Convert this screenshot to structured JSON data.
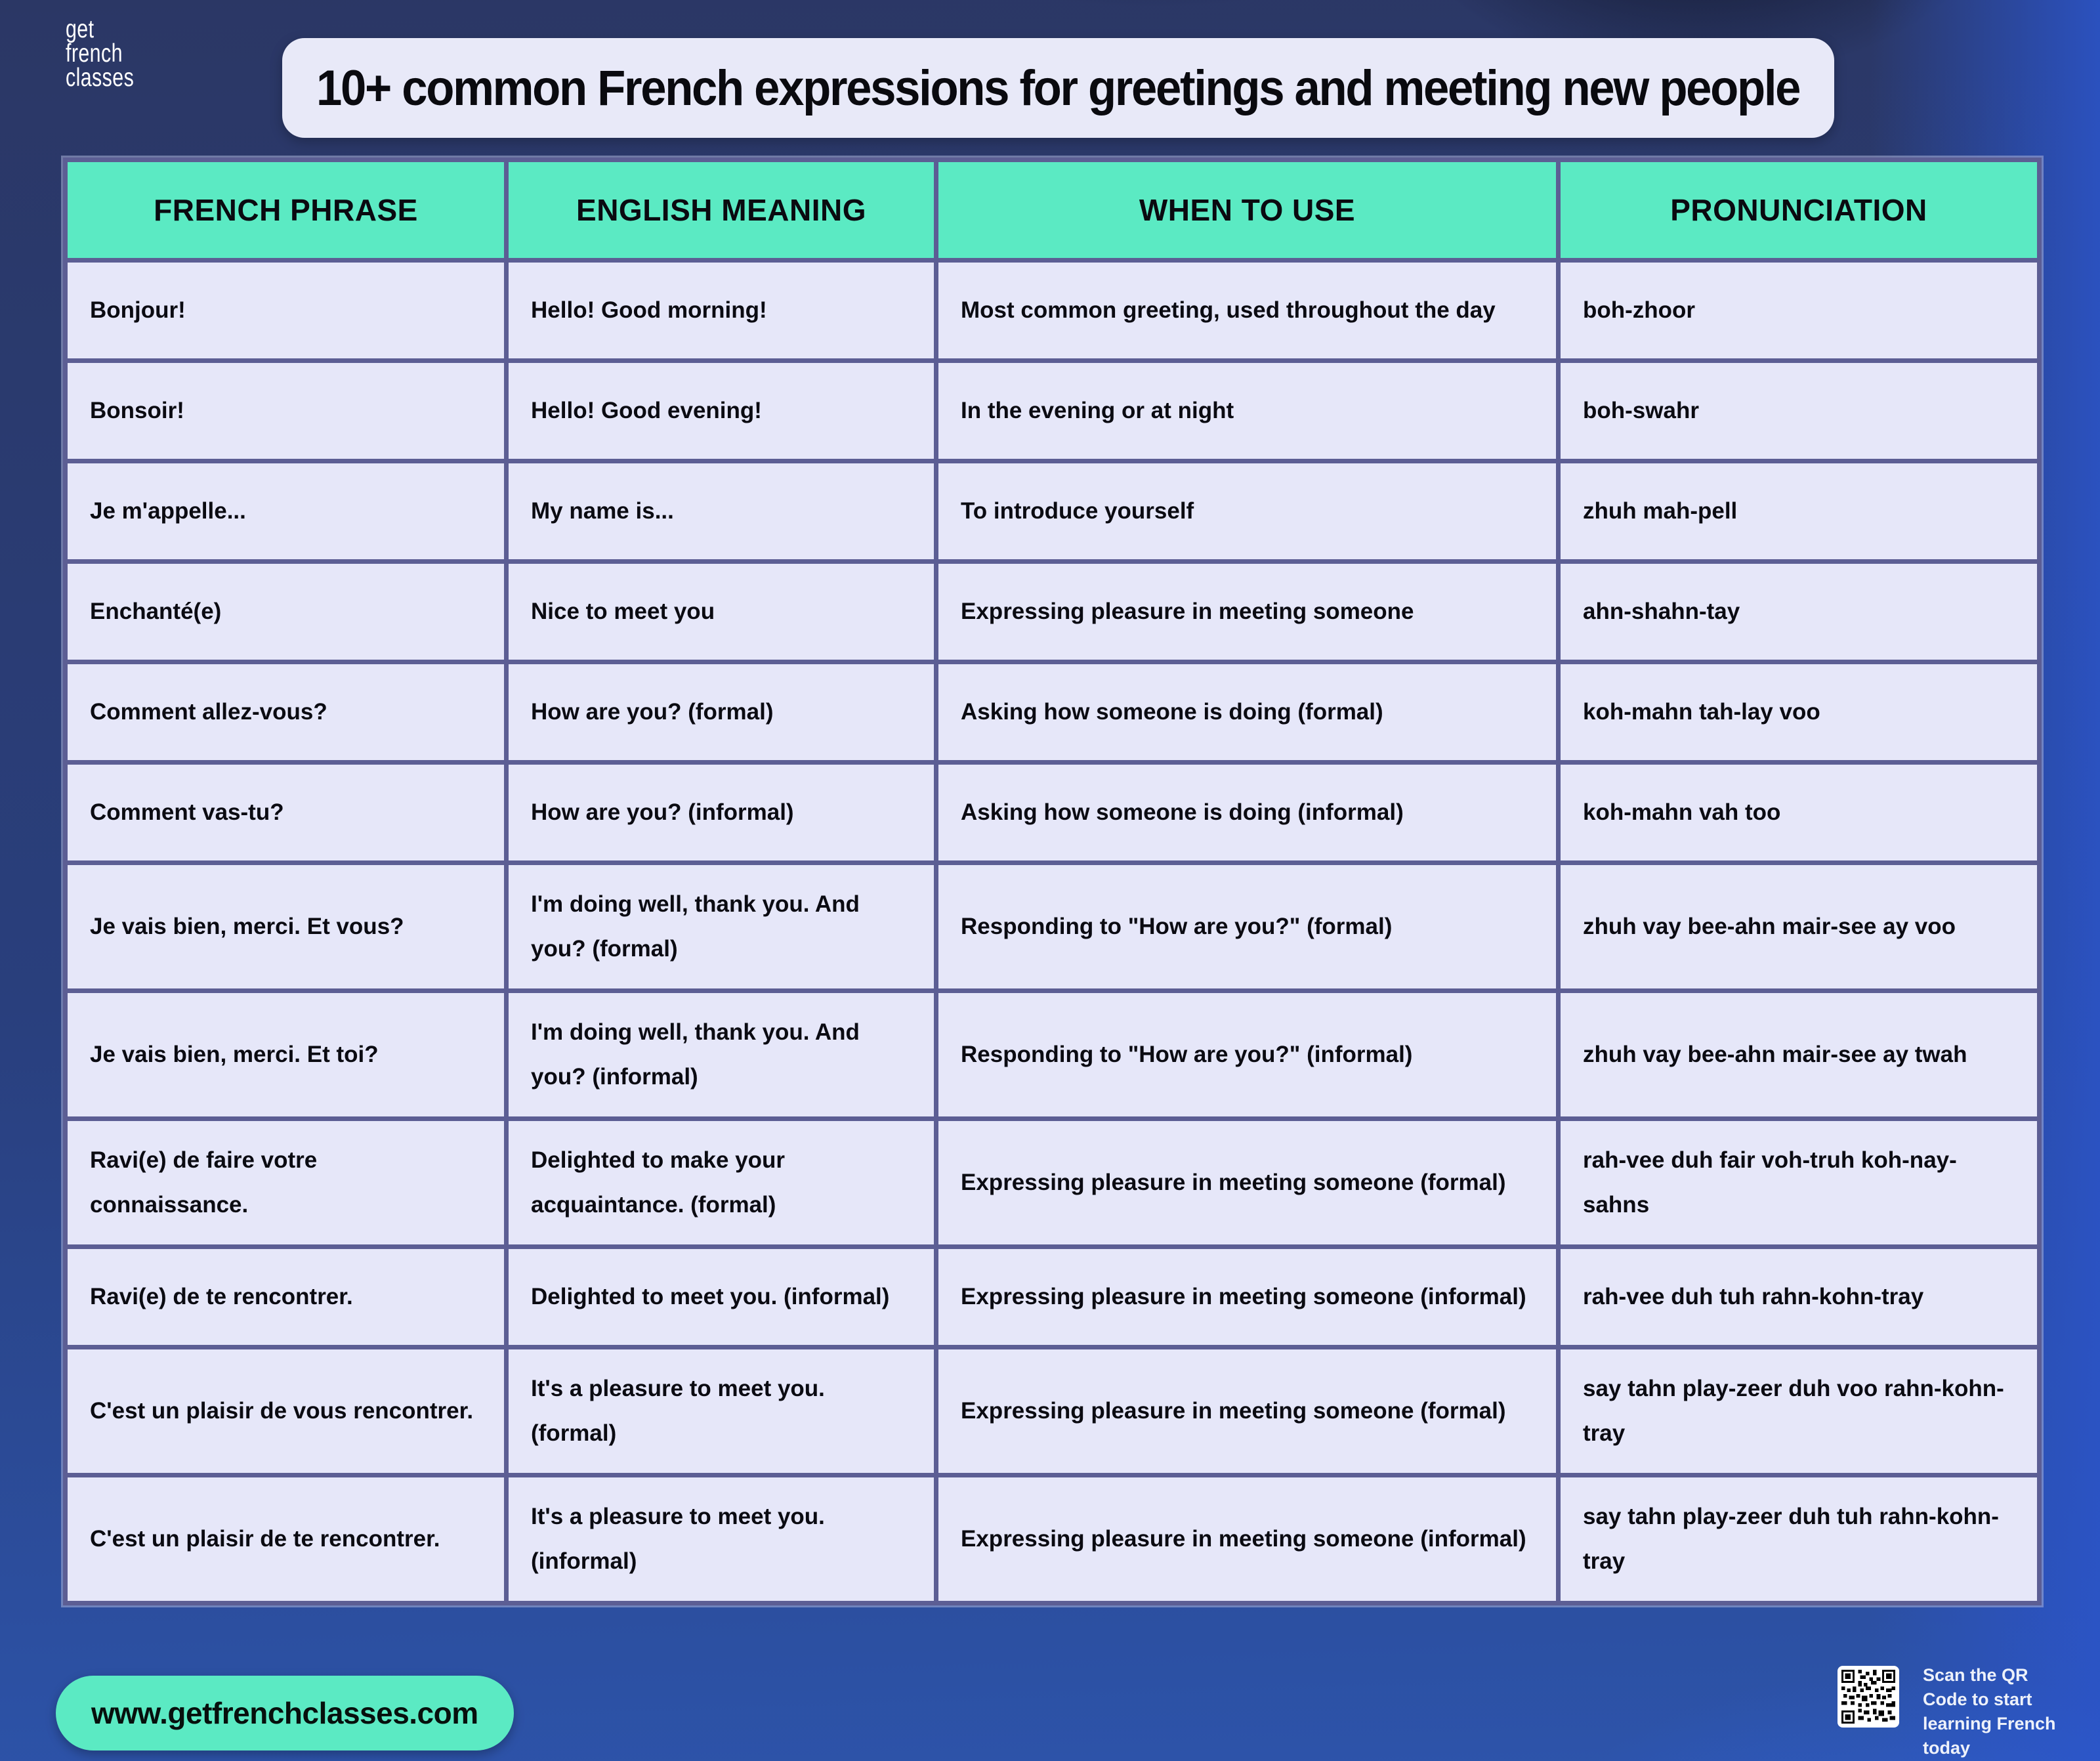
{
  "logo": {
    "lines": [
      "get",
      "french",
      "classes"
    ]
  },
  "title": "10+ common French expressions for greetings and meeting new people",
  "table": {
    "headers": [
      "FRENCH PHRASE",
      "ENGLISH MEANING",
      "WHEN TO USE",
      "PRONUNCIATION"
    ],
    "rows": [
      [
        "Bonjour!",
        "Hello! Good morning!",
        "Most common greeting, used throughout the day",
        "boh-zhoor"
      ],
      [
        "Bonsoir!",
        "Hello! Good evening!",
        "In the evening or at night",
        "boh-swahr"
      ],
      [
        "Je m'appelle...",
        "My name is...",
        "To introduce yourself",
        "zhuh mah-pell"
      ],
      [
        "Enchanté(e)",
        "Nice to meet you",
        "Expressing pleasure in meeting someone",
        "ahn-shahn-tay"
      ],
      [
        "Comment allez-vous?",
        "How are you? (formal)",
        "Asking how someone is doing (formal)",
        "koh-mahn tah-lay voo"
      ],
      [
        "Comment vas-tu?",
        "How are you? (informal)",
        "Asking how someone is doing (informal)",
        "koh-mahn vah too"
      ],
      [
        "Je vais bien, merci. Et vous?",
        "I'm doing well, thank you. And you? (formal)",
        "Responding to \"How are you?\" (formal)",
        "zhuh vay bee-ahn mair-see ay voo"
      ],
      [
        "Je vais bien, merci. Et toi?",
        "I'm doing well, thank you. And you? (informal)",
        "Responding to \"How are you?\" (informal)",
        "zhuh vay bee-ahn mair-see ay twah"
      ],
      [
        "Ravi(e) de faire votre connaissance.",
        "Delighted to make your acquaintance. (formal)",
        "Expressing pleasure in meeting someone (formal)",
        "rah-vee duh fair voh-truh koh-nay-sahns"
      ],
      [
        "Ravi(e) de te rencontrer.",
        "Delighted to meet you. (informal)",
        "Expressing pleasure in meeting someone (informal)",
        "rah-vee duh tuh rahn-kohn-tray"
      ],
      [
        "C'est un plaisir de vous rencontrer.",
        "It's a pleasure to meet you. (formal)",
        "Expressing pleasure in meeting someone (formal)",
        "say tahn play-zeer duh voo rahn-kohn-tray"
      ],
      [
        "C'est un plaisir de te rencontrer.",
        "It's a pleasure to meet you. (informal)",
        "Expressing pleasure in meeting someone (informal)",
        "say tahn play-zeer duh tuh rahn-kohn-tray"
      ]
    ]
  },
  "footer": {
    "website": "www.getfrenchclasses.com",
    "qr_caption": "Scan the QR Code to start learning French today"
  },
  "colors": {
    "header_bg": "#5BEAC3",
    "cell_bg": "#E6E7F9",
    "border": "#5C5E94",
    "title_bg": "#E8E9F8",
    "pill_bg": "#5BEAC3",
    "text_dark": "#0B0B12"
  }
}
